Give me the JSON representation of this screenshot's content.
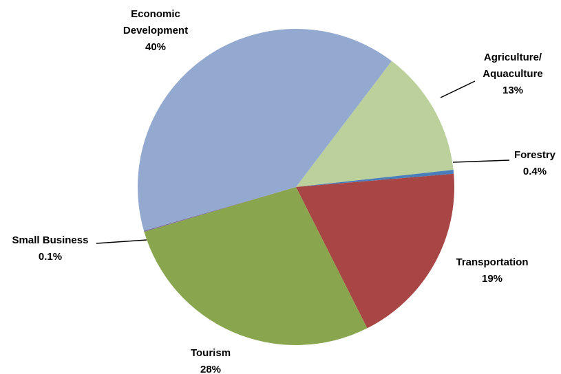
{
  "chart_data": {
    "type": "pie",
    "categories": [
      "Agriculture/ Aquaculture",
      "Forestry",
      "Transportation",
      "Tourism",
      "Small Business",
      "Economic Development"
    ],
    "values": [
      13,
      0.4,
      19,
      28,
      0.1,
      40
    ],
    "slices": [
      {
        "label_lines": [
          "Agriculture/",
          "Aquaculture"
        ],
        "value": 13,
        "pct_label": "13%",
        "color": "#BBD09A"
      },
      {
        "label_lines": [
          "Forestry"
        ],
        "value": 0.4,
        "pct_label": "0.4%",
        "color": "#4A7EBB"
      },
      {
        "label_lines": [
          "Transportation"
        ],
        "value": 19,
        "pct_label": "19%",
        "color": "#A84645"
      },
      {
        "label_lines": [
          "Tourism"
        ],
        "value": 28,
        "pct_label": "28%",
        "color": "#89A64E"
      },
      {
        "label_lines": [
          "Small Business"
        ],
        "value": 0.1,
        "pct_label": "0.1%",
        "color": "#7E6A9A"
      },
      {
        "label_lines": [
          "Economic",
          "Development"
        ],
        "value": 40,
        "pct_label": "40%",
        "color": "#94A9D0"
      }
    ],
    "title": "",
    "legend": "none"
  }
}
